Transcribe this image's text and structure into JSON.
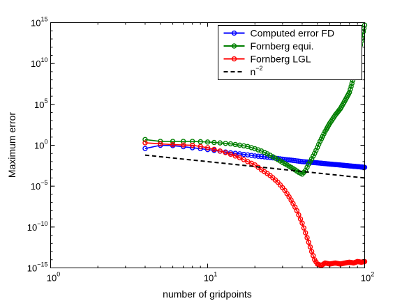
{
  "chart_data": {
    "type": "line",
    "title": "",
    "xlabel": "number of gridpoints",
    "ylabel": "Maximum error",
    "xscale": "log",
    "yscale": "log",
    "xlim": [
      1,
      100
    ],
    "ylim": [
      1e-15,
      1000000000000000.0
    ],
    "x_ticks": [
      {
        "base": "10",
        "exp": "0",
        "value": 1
      },
      {
        "base": "10",
        "exp": "1",
        "value": 10
      },
      {
        "base": "10",
        "exp": "2",
        "value": 100
      }
    ],
    "y_ticks": [
      {
        "base": "10",
        "exp": "−15",
        "value": 1e-15
      },
      {
        "base": "10",
        "exp": "−10",
        "value": 1e-10
      },
      {
        "base": "10",
        "exp": "−5",
        "value": 1e-05
      },
      {
        "base": "10",
        "exp": "0",
        "value": 1
      },
      {
        "base": "10",
        "exp": "5",
        "value": 100000.0
      },
      {
        "base": "10",
        "exp": "10",
        "value": 10000000000.0
      },
      {
        "base": "10",
        "exp": "15",
        "value": 1000000000000000.0
      }
    ],
    "grid": false,
    "legend_position": "top-right",
    "series": [
      {
        "name": "Computed error FD",
        "color": "#0000ff",
        "marker": "circle",
        "line_style": "solid",
        "points": [
          [
            4,
            0.4
          ],
          [
            5,
            1.0
          ],
          [
            6,
            0.9
          ],
          [
            8,
            0.5
          ],
          [
            10,
            0.3
          ],
          [
            14,
            0.12
          ],
          [
            20,
            0.05
          ],
          [
            30,
            0.02
          ],
          [
            40,
            0.01
          ],
          [
            60,
            0.005
          ],
          [
            80,
            0.003
          ],
          [
            100,
            0.002
          ]
        ]
      },
      {
        "name": "Fornberg equi.",
        "color": "#007f00",
        "marker": "circle",
        "line_style": "solid",
        "points": [
          [
            4,
            5
          ],
          [
            5,
            3
          ],
          [
            6,
            3
          ],
          [
            8,
            3
          ],
          [
            10,
            2.5
          ],
          [
            14,
            1.5
          ],
          [
            18,
            0.7
          ],
          [
            22,
            0.2
          ],
          [
            26,
            0.04
          ],
          [
            30,
            0.008
          ],
          [
            34,
            0.002
          ],
          [
            38,
            0.0005
          ],
          [
            40,
            0.0003
          ],
          [
            42,
            0.0008
          ],
          [
            44,
            0.005
          ],
          [
            48,
            0.1
          ],
          [
            52,
            3
          ],
          [
            56,
            50
          ],
          [
            60,
            500
          ],
          [
            65,
            5000.0
          ],
          [
            70,
            30000.0
          ],
          [
            75,
            300000.0
          ],
          [
            80,
            3000000.0
          ],
          [
            85,
            200000000.0
          ],
          [
            90,
            30000000000.0
          ],
          [
            95,
            5000000000000.0
          ],
          [
            100,
            500000000000000.0
          ]
        ]
      },
      {
        "name": "Fornberg LGL",
        "color": "#ff0000",
        "marker": "circle",
        "line_style": "solid",
        "points": [
          [
            4,
            2
          ],
          [
            5,
            1.5
          ],
          [
            6,
            1.2
          ],
          [
            8,
            1
          ],
          [
            10,
            0.5
          ],
          [
            12,
            0.2
          ],
          [
            14,
            0.08
          ],
          [
            16,
            0.03
          ],
          [
            18,
            0.01
          ],
          [
            20,
            0.004
          ],
          [
            22,
            0.001
          ],
          [
            25,
            0.0002
          ],
          [
            28,
            3e-05
          ],
          [
            31,
            3e-06
          ],
          [
            34,
            2e-07
          ],
          [
            37,
            1e-08
          ],
          [
            40,
            3e-10
          ],
          [
            43,
            5e-12
          ],
          [
            46,
            1e-13
          ],
          [
            48,
            1e-14
          ],
          [
            50,
            3e-15
          ],
          [
            53,
            2e-15
          ],
          [
            56,
            4e-15
          ],
          [
            60,
            3e-15
          ],
          [
            65,
            4e-15
          ],
          [
            70,
            3e-15
          ],
          [
            75,
            4e-15
          ],
          [
            80,
            5e-15
          ],
          [
            85,
            4e-15
          ],
          [
            90,
            6e-15
          ],
          [
            95,
            5e-15
          ],
          [
            100,
            6e-15
          ]
        ]
      },
      {
        "name": "n^-2",
        "legend_base": "n",
        "legend_exp": "−2",
        "color": "#000000",
        "marker": "none",
        "line_style": "dashed",
        "points": [
          [
            4,
            0.0625
          ],
          [
            100,
            0.0001
          ]
        ]
      }
    ]
  }
}
